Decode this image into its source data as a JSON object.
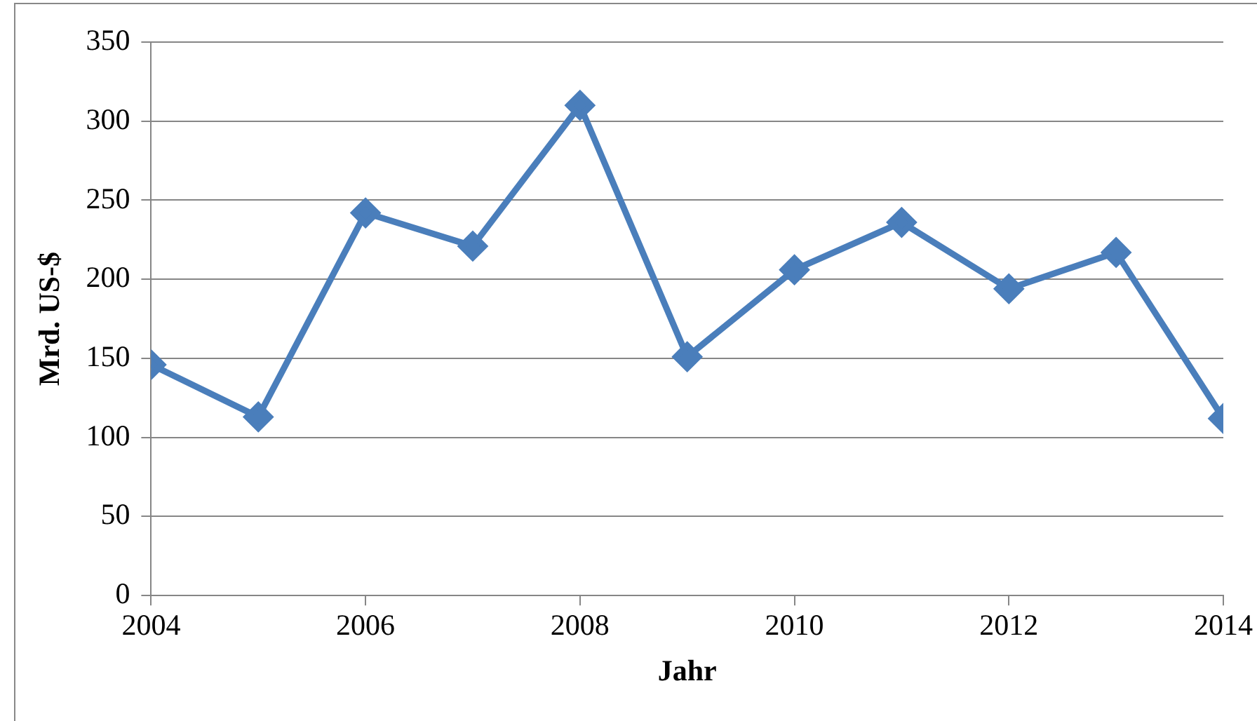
{
  "chart_data": {
    "type": "line",
    "xlabel": "Jahr",
    "ylabel": "Mrd. US-$",
    "x": [
      2004,
      2005,
      2006,
      2007,
      2008,
      2009,
      2010,
      2011,
      2012,
      2013,
      2014
    ],
    "series": [
      {
        "color": "#4a7ebb",
        "values": [
          146,
          113,
          242,
          221,
          310,
          151,
          206,
          236,
          194,
          217,
          112
        ]
      }
    ],
    "xlim": [
      2004,
      2014
    ],
    "xticks": [
      2004,
      2006,
      2008,
      2010,
      2012,
      2014
    ],
    "ylim": [
      0,
      350
    ],
    "yticks": [
      0,
      50,
      100,
      150,
      200,
      250,
      300,
      350
    ],
    "grid": "y",
    "legend": false,
    "marker": "diamond",
    "line_style": "solid"
  }
}
